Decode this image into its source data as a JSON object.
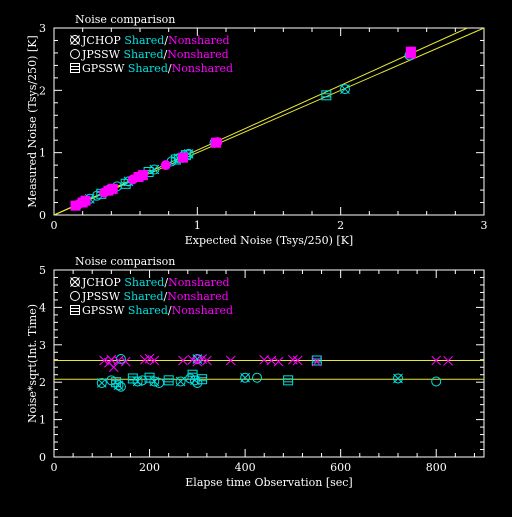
{
  "colors": {
    "white": "#ffffff",
    "cyan": "#00e0e0",
    "magenta": "#ff00ff",
    "yellow": "#e8e832",
    "background": "#000000"
  },
  "chart_data": [
    {
      "type": "scatter",
      "title": "Noise comparison",
      "xlabel": "Expected Noise (Tsys/250) [K]",
      "ylabel": "Measured Noise (Tsys/250) [K]",
      "xlim": [
        0,
        3
      ],
      "ylim": [
        0,
        3
      ],
      "xticks": [
        "0",
        "1",
        "2",
        "3"
      ],
      "yticks": [
        "0",
        "1",
        "2",
        "3"
      ],
      "legend": [
        {
          "symbol": "JCHOP",
          "shared": "Shared",
          "slash": "/",
          "nonshared": "Nonshared",
          "marker": "circle-x"
        },
        {
          "symbol": "JPSSW",
          "shared": "Shared",
          "slash": "/",
          "nonshared": "Nonshared",
          "marker": "circle"
        },
        {
          "symbol": "GPSSW",
          "shared": "Shared",
          "slash": "/",
          "nonshared": "Nonshared",
          "marker": "square-x"
        }
      ],
      "legend_position": "top-left",
      "reference_lines": [
        {
          "slope": 1.0,
          "intercept": 0
        },
        {
          "slope": 1.04,
          "intercept": 0
        }
      ],
      "series": [
        {
          "group": "Shared",
          "values": [
            [
              0.25,
              0.26
            ],
            [
              0.3,
              0.31
            ],
            [
              0.33,
              0.34
            ],
            [
              0.4,
              0.41
            ],
            [
              0.44,
              0.46
            ],
            [
              0.5,
              0.5
            ],
            [
              0.52,
              0.54
            ],
            [
              0.61,
              0.63
            ],
            [
              0.66,
              0.69
            ],
            [
              0.7,
              0.73
            ],
            [
              0.82,
              0.86
            ],
            [
              0.85,
              0.89
            ],
            [
              0.87,
              0.91
            ],
            [
              0.9,
              0.94
            ],
            [
              0.92,
              0.96
            ],
            [
              0.94,
              0.98
            ],
            [
              1.12,
              1.16
            ],
            [
              1.9,
              1.92
            ],
            [
              2.03,
              2.02
            ],
            [
              2.48,
              2.56
            ]
          ]
        },
        {
          "group": "Nonshared",
          "values": [
            [
              0.15,
              0.15
            ],
            [
              0.17,
              0.17
            ],
            [
              0.2,
              0.2
            ],
            [
              0.22,
              0.23
            ],
            [
              0.35,
              0.36
            ],
            [
              0.38,
              0.39
            ],
            [
              0.41,
              0.42
            ],
            [
              0.55,
              0.57
            ],
            [
              0.59,
              0.61
            ],
            [
              0.62,
              0.64
            ],
            [
              0.78,
              0.8
            ],
            [
              0.9,
              0.92
            ],
            [
              1.13,
              1.16
            ],
            [
              1.14,
              1.17
            ],
            [
              2.49,
              2.62
            ],
            [
              2.49,
              2.59
            ]
          ]
        }
      ]
    },
    {
      "type": "scatter",
      "title": "Noise comparison",
      "xlabel": "Elapse time Observation [sec]",
      "ylabel": "Noise*sqrt(Int. Time)",
      "xlim": [
        0,
        900
      ],
      "ylim": [
        0,
        5
      ],
      "xticks": [
        "0",
        "200",
        "400",
        "600",
        "800"
      ],
      "yticks": [
        "0",
        "1",
        "2",
        "3",
        "4",
        "5"
      ],
      "legend": [
        {
          "symbol": "JCHOP",
          "shared": "Shared",
          "slash": "/",
          "nonshared": "Nonshared",
          "marker": "circle-x"
        },
        {
          "symbol": "JPSSW",
          "shared": "Shared",
          "slash": "/",
          "nonshared": "Nonshared",
          "marker": "circle"
        },
        {
          "symbol": "GPSSW",
          "shared": "Shared",
          "slash": "/",
          "nonshared": "Nonshared",
          "marker": "square-x"
        }
      ],
      "legend_position": "top-left",
      "reference_lines": [
        {
          "y": 2.58
        },
        {
          "y": 2.08
        }
      ],
      "series": [
        {
          "group": "Shared",
          "values": [
            [
              100,
              1.98
            ],
            [
              120,
              2.05
            ],
            [
              130,
              2.0
            ],
            [
              135,
              1.92
            ],
            [
              140,
              1.88
            ],
            [
              165,
              2.1
            ],
            [
              175,
              2.02
            ],
            [
              185,
              2.05
            ],
            [
              200,
              2.12
            ],
            [
              210,
              2.02
            ],
            [
              220,
              1.98
            ],
            [
              240,
              2.05
            ],
            [
              265,
              2.02
            ],
            [
              285,
              2.1
            ],
            [
              290,
              2.2
            ],
            [
              295,
              2.05
            ],
            [
              300,
              1.98
            ],
            [
              310,
              2.08
            ],
            [
              400,
              2.12
            ],
            [
              425,
              2.12
            ],
            [
              490,
              2.05
            ],
            [
              720,
              2.1
            ],
            [
              800,
              2.02
            ],
            [
              550,
              2.58
            ],
            [
              300,
              2.62
            ],
            [
              140,
              2.62
            ]
          ]
        },
        {
          "group": "Nonshared",
          "values": [
            [
              105,
              2.58
            ],
            [
              115,
              2.52
            ],
            [
              120,
              2.6
            ],
            [
              125,
              2.4
            ],
            [
              135,
              2.58
            ],
            [
              150,
              2.55
            ],
            [
              190,
              2.6
            ],
            [
              200,
              2.63
            ],
            [
              210,
              2.58
            ],
            [
              270,
              2.58
            ],
            [
              290,
              2.6
            ],
            [
              300,
              2.55
            ],
            [
              310,
              2.62
            ],
            [
              320,
              2.58
            ],
            [
              370,
              2.58
            ],
            [
              440,
              2.6
            ],
            [
              455,
              2.58
            ],
            [
              470,
              2.55
            ],
            [
              500,
              2.6
            ],
            [
              510,
              2.58
            ],
            [
              550,
              2.55
            ],
            [
              800,
              2.58
            ],
            [
              825,
              2.57
            ]
          ]
        }
      ]
    }
  ]
}
